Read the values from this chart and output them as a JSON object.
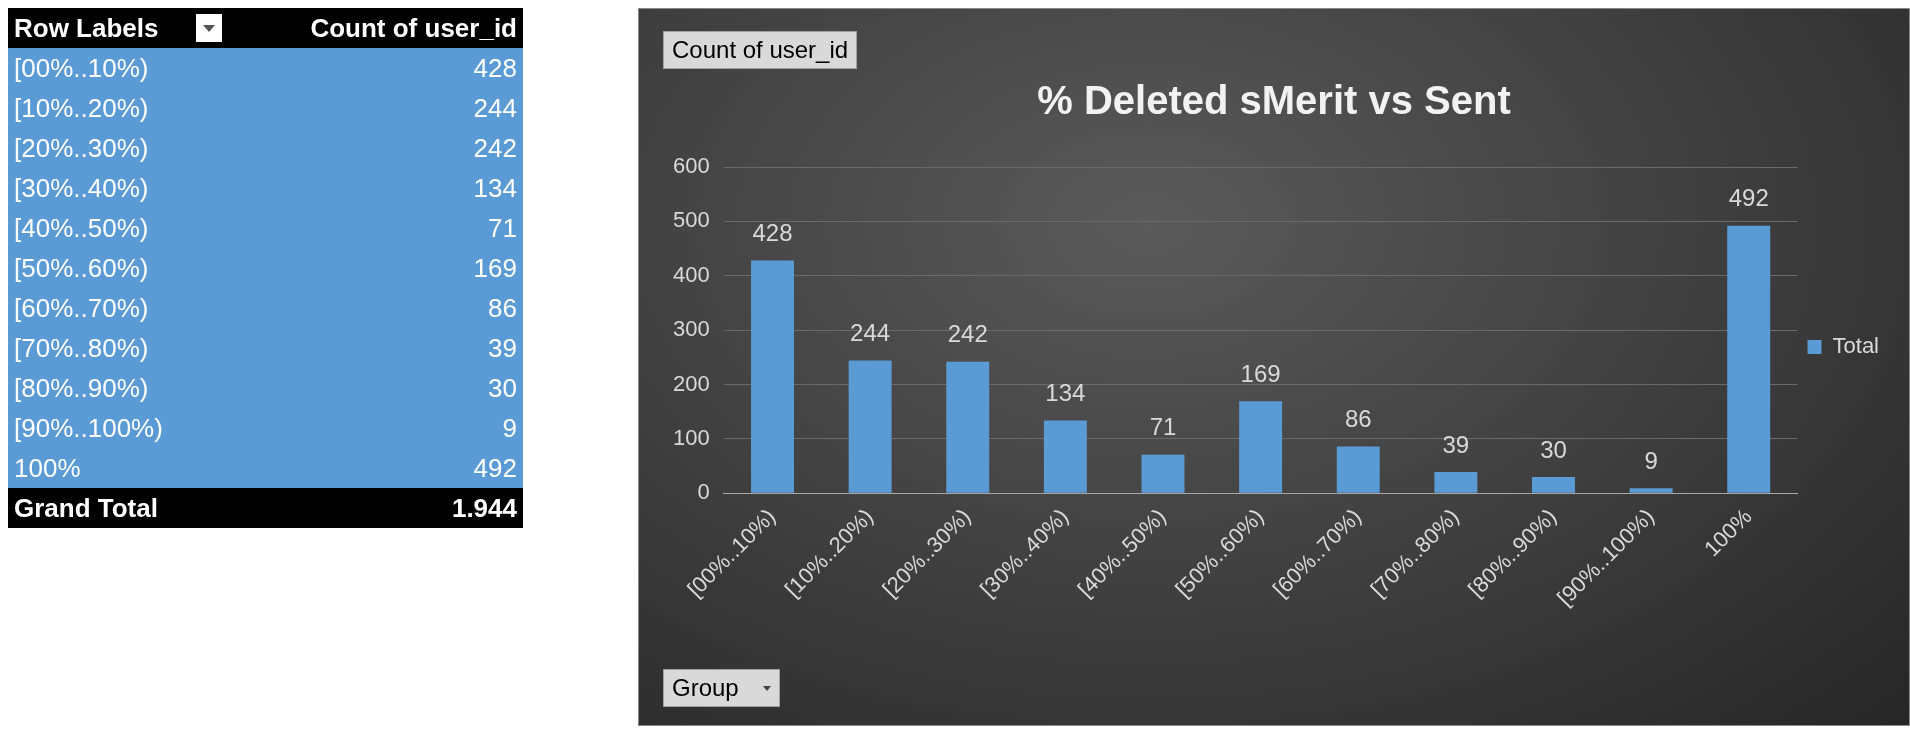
{
  "chart_data": [
    {
      "type": "other",
      "categories": [
        "[00%..10%)",
        "[10%..20%)",
        "[20%..30%)",
        "[30%..40%)",
        "[40%..50%)",
        "[50%..60%)",
        "[60%..70%)",
        "[70%..80%)",
        "[80%..90%)",
        "[90%..100%)",
        "100%"
      ],
      "values": [
        428,
        244,
        242,
        134,
        71,
        169,
        86,
        39,
        30,
        9,
        492
      ],
      "color": "#5b9bd5",
      "data_labels": true,
      "annotations": [
        "Row Labels",
        "Count of user_id",
        "Grand Total",
        "1.944"
      ]
    },
    {
      "type": "bar",
      "title": "% Deleted sMerit vs Sent",
      "categories": [
        "[00%..10%)",
        "[10%..20%)",
        "[20%..30%)",
        "[30%..40%)",
        "[40%..50%)",
        "[50%..60%)",
        "[60%..70%)",
        "[70%..80%)",
        "[80%..90%)",
        "[90%..100%)",
        "100%"
      ],
      "series": [
        {
          "name": "Total",
          "color": "#5b9bd5",
          "values": [
            428,
            244,
            242,
            134,
            71,
            169,
            86,
            39,
            30,
            9,
            492
          ]
        }
      ],
      "ylim": [
        0,
        600
      ],
      "yticks": [
        0,
        100,
        200,
        300,
        400,
        500,
        600
      ],
      "grid": "y",
      "legend": "right",
      "data_labels": true,
      "annotations": [
        "Count of user_id",
        "Group"
      ]
    }
  ]
}
